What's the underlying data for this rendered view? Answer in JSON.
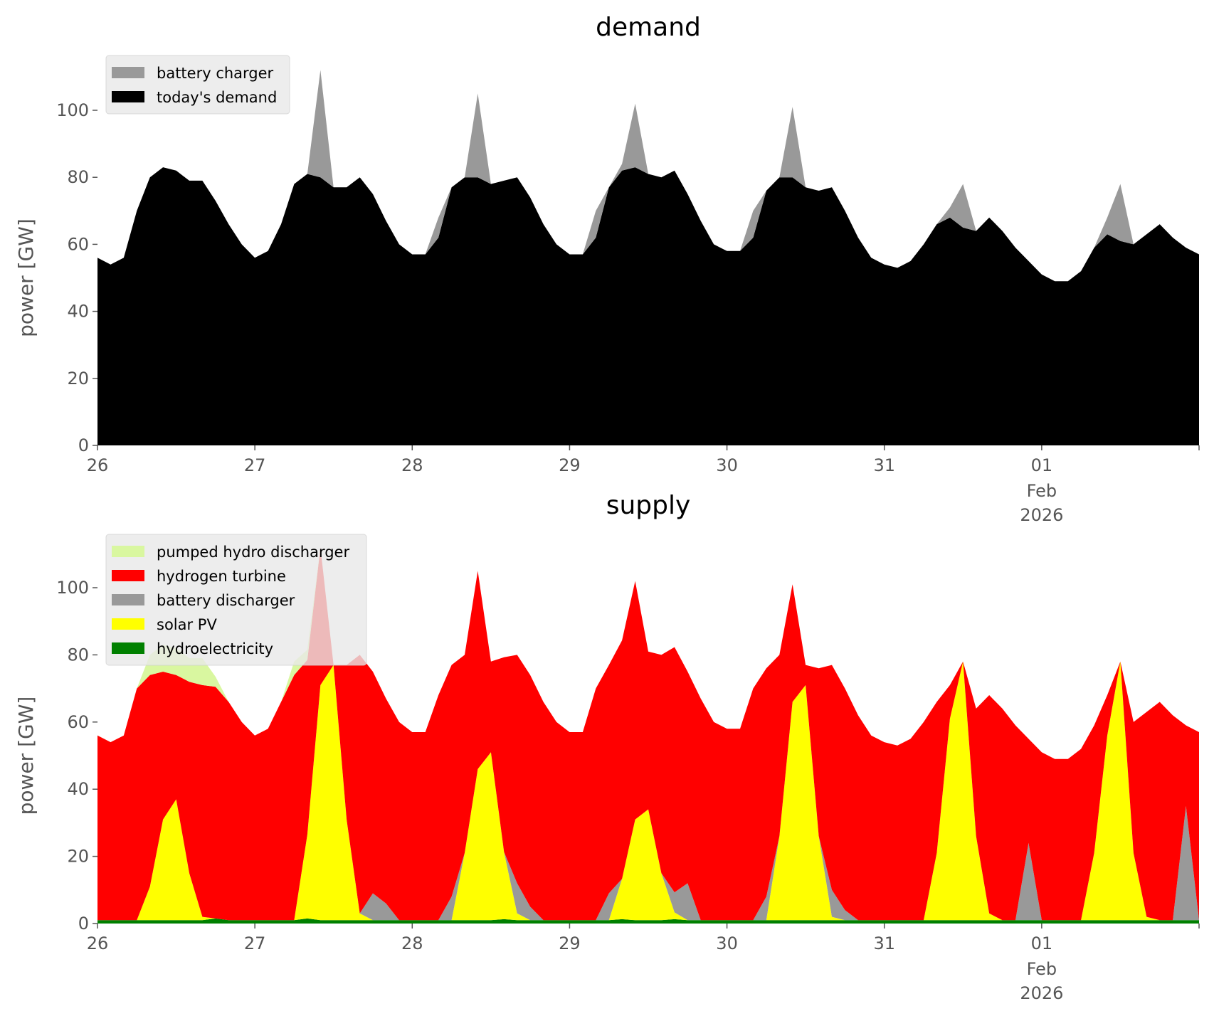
{
  "chart_data": [
    {
      "type": "area",
      "stacked": true,
      "title": "demand",
      "ylabel": "power [GW]",
      "xlabel": "",
      "ylim": [
        0,
        115
      ],
      "yticks": [
        "0",
        "20",
        "40",
        "60",
        "80",
        "100"
      ],
      "xticks": [
        {
          "label": "26"
        },
        {
          "label": "27"
        },
        {
          "label": "28"
        },
        {
          "label": "29"
        },
        {
          "label": "30"
        },
        {
          "label": "31"
        },
        {
          "label": "01",
          "sub": [
            "Feb",
            "2026"
          ]
        },
        {
          "label": ""
        }
      ],
      "x_start": "2026-01-26T00:00",
      "x_step_hours": 2,
      "legend_position": "top-left",
      "series": [
        {
          "name": "today's demand",
          "color": "#000000",
          "values": [
            56,
            54,
            56,
            70,
            80,
            83,
            82,
            79,
            79,
            73,
            66,
            60,
            56,
            58,
            66,
            78,
            81,
            80,
            77,
            77,
            80,
            75,
            67,
            60,
            57,
            57,
            62,
            77,
            80,
            80,
            78,
            79,
            80,
            74,
            66,
            60,
            57,
            57,
            62,
            77,
            82,
            83,
            81,
            80,
            82,
            75,
            67,
            60,
            58,
            58,
            62,
            76,
            80,
            80,
            77,
            76,
            77,
            70,
            62,
            56,
            54,
            53,
            55,
            60,
            66,
            68,
            65,
            64,
            68,
            64,
            59,
            55,
            51,
            49,
            49,
            52,
            59,
            63,
            61,
            60,
            63,
            66,
            62,
            59,
            57
          ]
        },
        {
          "name": "battery charger",
          "color": "#999999",
          "values": [
            0,
            0,
            0,
            0,
            0,
            0,
            0,
            0,
            0,
            0,
            0,
            0,
            0,
            0,
            0,
            0,
            0,
            32,
            0,
            0,
            0,
            0,
            0,
            0,
            0,
            0,
            6,
            0,
            0,
            25,
            0,
            0,
            0,
            0,
            0,
            0,
            0,
            0,
            8,
            0,
            2,
            19,
            0,
            0,
            0,
            0,
            0,
            0,
            0,
            0,
            8,
            0,
            0,
            21,
            0,
            0,
            0,
            0,
            0,
            0,
            0,
            0,
            0,
            0,
            0,
            3,
            13,
            0,
            0,
            0,
            0,
            0,
            0,
            0,
            0,
            0,
            0,
            5,
            17,
            0,
            0,
            0,
            0,
            0,
            0
          ]
        }
      ],
      "legend": [
        "battery charger",
        "today's demand"
      ]
    },
    {
      "type": "area",
      "stacked": true,
      "title": "supply",
      "ylabel": "power [GW]",
      "xlabel": "",
      "ylim": [
        0,
        115
      ],
      "yticks": [
        "0",
        "20",
        "40",
        "60",
        "80",
        "100"
      ],
      "xticks": [
        {
          "label": "26"
        },
        {
          "label": "27"
        },
        {
          "label": "28"
        },
        {
          "label": "29"
        },
        {
          "label": "30"
        },
        {
          "label": "31"
        },
        {
          "label": "01",
          "sub": [
            "Feb",
            "2026"
          ]
        },
        {
          "label": ""
        }
      ],
      "x_start": "2026-01-26T00:00",
      "x_step_hours": 2,
      "legend_position": "top-left",
      "series": [
        {
          "name": "hydroelectricity",
          "color": "#008000",
          "values": [
            1,
            1,
            1,
            1,
            1,
            1,
            1,
            1,
            1,
            1.5,
            1,
            1,
            1,
            1,
            1,
            1,
            1.5,
            1,
            1,
            1,
            1,
            1,
            1,
            1,
            1,
            1,
            1,
            1,
            1,
            1,
            1,
            1.3,
            1,
            1,
            1,
            1,
            1,
            1,
            1,
            1,
            1.3,
            1,
            1,
            1,
            1.3,
            1,
            1,
            1,
            1,
            1,
            1,
            1,
            1,
            1,
            1,
            1,
            1,
            1,
            1,
            1,
            1,
            1,
            1,
            1,
            1,
            1,
            1,
            1,
            1,
            1,
            1,
            1,
            1,
            1,
            1,
            1,
            1,
            1,
            1,
            1,
            1,
            1,
            1,
            1,
            1
          ]
        },
        {
          "name": "solar PV",
          "color": "#ffff00",
          "values": [
            0,
            0,
            0,
            0,
            10,
            30,
            36,
            14,
            1,
            0,
            0,
            0,
            0,
            0,
            0,
            0,
            25,
            70,
            76,
            30,
            2,
            0,
            0,
            0,
            0,
            0,
            0,
            0,
            20,
            45,
            50,
            20,
            2,
            0,
            0,
            0,
            0,
            0,
            0,
            0,
            12,
            30,
            33,
            14,
            2,
            0,
            0,
            0,
            0,
            0,
            0,
            0,
            25,
            65,
            70,
            25,
            1,
            0,
            0,
            0,
            0,
            0,
            0,
            0,
            20,
            60,
            77,
            25,
            2,
            0,
            0,
            0,
            0,
            0,
            0,
            0,
            20,
            55,
            77,
            20,
            1,
            0,
            0,
            0,
            0
          ]
        },
        {
          "name": "battery discharger",
          "color": "#999999",
          "values": [
            0,
            0,
            0,
            0,
            0,
            0,
            0,
            0,
            0,
            0,
            0,
            0,
            0,
            0,
            0,
            0,
            0,
            0,
            0,
            0,
            0,
            8,
            5,
            0,
            0,
            0,
            0,
            7,
            0,
            0,
            0,
            0,
            9,
            4,
            0,
            0,
            0,
            0,
            0,
            8,
            0,
            0,
            0,
            0,
            6,
            11,
            0,
            0,
            0,
            0,
            0,
            7,
            0,
            0,
            0,
            0,
            8,
            3,
            0,
            0,
            0,
            0,
            0,
            0,
            0,
            0,
            0,
            0,
            0,
            0,
            0,
            23,
            0,
            0,
            0,
            0,
            0,
            0,
            0,
            0,
            0,
            0,
            0,
            34,
            0
          ]
        },
        {
          "name": "hydrogen turbine",
          "color": "#ff0000",
          "values": [
            55,
            53,
            55,
            69,
            63,
            44,
            37,
            57,
            69,
            69,
            65,
            59,
            55,
            57,
            65,
            73,
            52,
            41,
            0,
            46,
            77,
            66,
            61,
            59,
            56,
            56,
            67,
            69,
            59,
            59,
            27,
            58,
            68,
            69,
            65,
            59,
            56,
            56,
            69,
            68,
            71,
            71,
            47,
            65,
            73,
            63,
            66,
            59,
            57,
            57,
            69,
            68,
            54,
            35,
            6,
            50,
            67,
            66,
            61,
            55,
            53,
            52,
            54,
            59,
            45,
            10,
            0,
            38,
            65,
            63,
            58,
            31,
            50,
            48,
            48,
            51,
            38,
            12,
            0,
            39,
            61,
            65,
            61,
            24,
            56
          ]
        },
        {
          "name": "pumped hydro discharger",
          "color": "#d9f7a0",
          "values": [
            0,
            0,
            0,
            0,
            6,
            8,
            8,
            7,
            8,
            3,
            0,
            0,
            0,
            0,
            0,
            4,
            3,
            0,
            0,
            0,
            0,
            0,
            0,
            0,
            0,
            0,
            0,
            0,
            0,
            0,
            0,
            0,
            0,
            0,
            0,
            0,
            0,
            0,
            0,
            0,
            0,
            0,
            0,
            0,
            0,
            0,
            0,
            0,
            0,
            0,
            0,
            0,
            0,
            0,
            0,
            0,
            0,
            0,
            0,
            0,
            0,
            0,
            0,
            0,
            0,
            0,
            0,
            0,
            0,
            0,
            0,
            0,
            0,
            0,
            0,
            0,
            0,
            0,
            0,
            0,
            0,
            0,
            0,
            0,
            0
          ]
        }
      ],
      "legend": [
        "pumped hydro discharger",
        "hydrogen turbine",
        "battery discharger",
        "solar PV",
        "hydroelectricity"
      ]
    }
  ]
}
